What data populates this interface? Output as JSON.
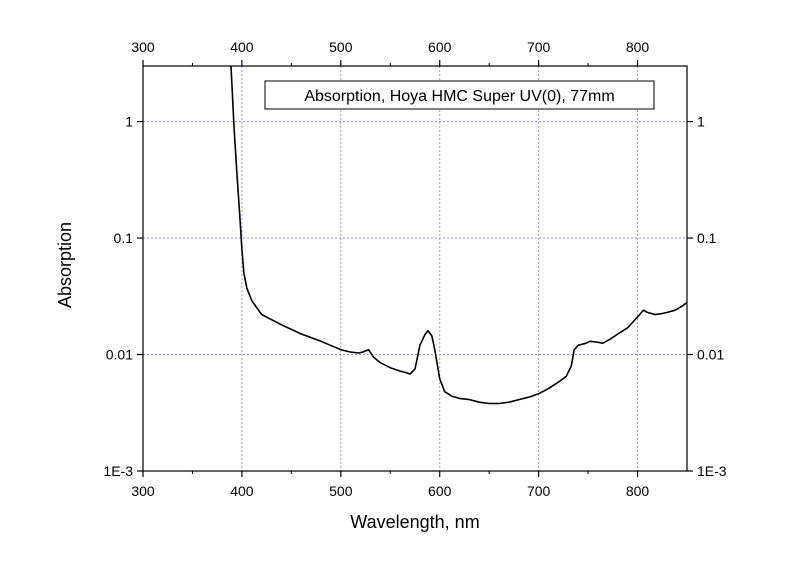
{
  "chart_data": {
    "type": "line",
    "annotation": "Absorption, Hoya HMC Super UV(0), 77mm",
    "xlabel": "Wavelength, nm",
    "ylabel": "Absorption",
    "xlim": [
      300,
      850
    ],
    "ylim": [
      0.001,
      3
    ],
    "yscale": "log",
    "grid": true,
    "x_ticks": [
      300,
      400,
      500,
      600,
      700,
      800
    ],
    "x_tick_labels": [
      "300",
      "400",
      "500",
      "600",
      "700",
      "800"
    ],
    "y_ticks": [
      0.001,
      0.01,
      0.1,
      1
    ],
    "y_tick_labels": [
      "1E-3",
      "0.01",
      "0.1",
      "1"
    ],
    "line_color": "#000000",
    "grid_color": "#9a9ae0",
    "series": [
      {
        "x": [
          389,
          392,
          395,
          398,
          400,
          402,
          405,
          410,
          420,
          440,
          460,
          480,
          500,
          510,
          518,
          522,
          528,
          533,
          540,
          550,
          560,
          566,
          570,
          575,
          580,
          585,
          588,
          592,
          595,
          600,
          605,
          612,
          620,
          630,
          640,
          650,
          660,
          670,
          680,
          690,
          700,
          710,
          720,
          728,
          733,
          736,
          740,
          748,
          752,
          758,
          765,
          772,
          780,
          790,
          800,
          806,
          810,
          818,
          825,
          830,
          838,
          845,
          850
        ],
        "y": [
          3.0,
          0.9,
          0.35,
          0.15,
          0.08,
          0.05,
          0.037,
          0.029,
          0.022,
          0.018,
          0.015,
          0.013,
          0.011,
          0.0105,
          0.0103,
          0.0105,
          0.011,
          0.0095,
          0.0085,
          0.0077,
          0.0072,
          0.007,
          0.0068,
          0.0075,
          0.012,
          0.0148,
          0.016,
          0.0145,
          0.011,
          0.0062,
          0.0048,
          0.0044,
          0.0042,
          0.0041,
          0.0039,
          0.0038,
          0.0038,
          0.0039,
          0.0041,
          0.0043,
          0.0046,
          0.0051,
          0.0058,
          0.0065,
          0.008,
          0.011,
          0.012,
          0.0125,
          0.013,
          0.0128,
          0.0125,
          0.0135,
          0.015,
          0.017,
          0.021,
          0.024,
          0.023,
          0.022,
          0.0225,
          0.023,
          0.024,
          0.026,
          0.028
        ]
      }
    ]
  }
}
